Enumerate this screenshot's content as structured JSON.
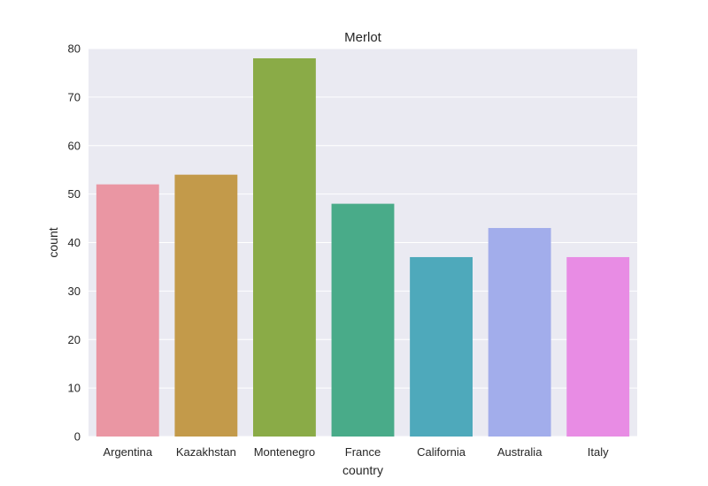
{
  "chart_data": {
    "type": "bar",
    "title": "Merlot",
    "xlabel": "country",
    "ylabel": "count",
    "categories": [
      "Argentina",
      "Kazakhstan",
      "Montenegro",
      "France",
      "California",
      "Australia",
      "Italy"
    ],
    "values": [
      52,
      54,
      78,
      48,
      37,
      43,
      37
    ],
    "colors": [
      "#ea96a3",
      "#c39a4a",
      "#8aab47",
      "#49ab89",
      "#4ea9bb",
      "#a2adeb",
      "#e88ce4"
    ],
    "ylim": [
      0,
      80
    ],
    "yticks": [
      0,
      10,
      20,
      30,
      40,
      50,
      60,
      70,
      80
    ],
    "grid": true,
    "background_color": "#eaeaf2",
    "grid_color": "#ffffff"
  }
}
